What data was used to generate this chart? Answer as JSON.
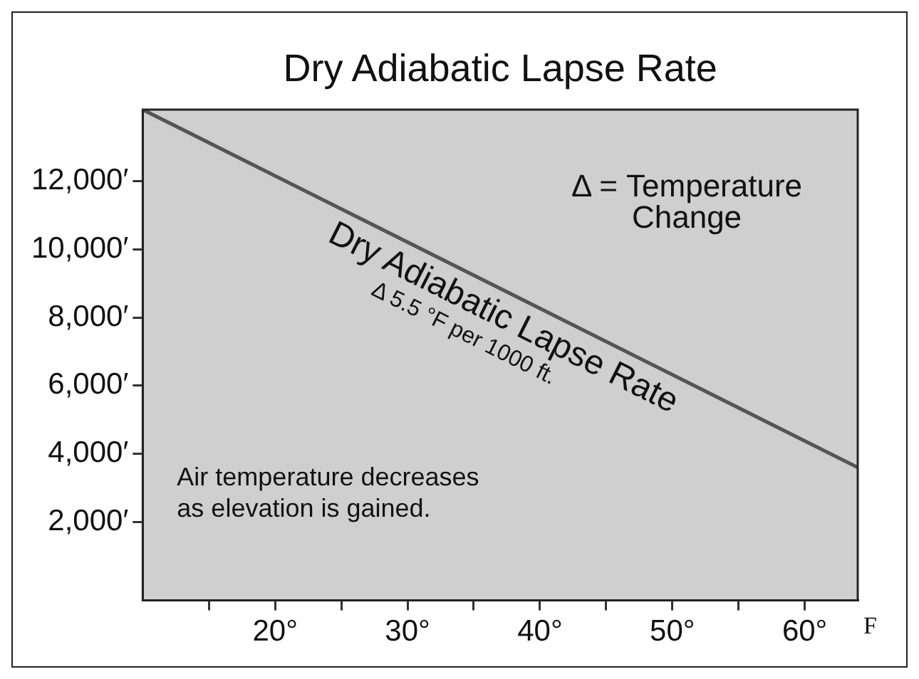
{
  "chart_data": {
    "type": "line",
    "title": "Dry Adiabatic Lapse Rate",
    "xlabel": "F",
    "series": [
      {
        "name": "Dry Adiabatic Lapse Rate",
        "color": "#555555",
        "x": [
          10,
          64
        ],
        "values": [
          14100,
          3600
        ]
      }
    ],
    "xlim": [
      10,
      64
    ],
    "ylim": [
      -300,
      14100
    ],
    "xticks": [
      {
        "value": 15,
        "label": null
      },
      {
        "value": 20,
        "label": "20°"
      },
      {
        "value": 25,
        "label": null
      },
      {
        "value": 30,
        "label": "30°"
      },
      {
        "value": 35,
        "label": null
      },
      {
        "value": 40,
        "label": "40°"
      },
      {
        "value": 45,
        "label": null
      },
      {
        "value": 50,
        "label": "50°"
      },
      {
        "value": 55,
        "label": null
      },
      {
        "value": 60,
        "label": "60°"
      }
    ],
    "yticks": [
      {
        "value": 2000,
        "label": "2,000′"
      },
      {
        "value": 4000,
        "label": "4,000′"
      },
      {
        "value": 6000,
        "label": "6,000′"
      },
      {
        "value": 8000,
        "label": "8,000′"
      },
      {
        "value": 10000,
        "label": "10,000′"
      },
      {
        "value": 12000,
        "label": "12,000′"
      }
    ],
    "grid": false,
    "legend": false,
    "marker": "none",
    "line_style": "solid",
    "annotations": [
      "Δ = Temperature\nChange",
      "Δ 5.5 °F per 1000 ft.",
      "Air temperature decreases\nas elevation is gained."
    ]
  }
}
